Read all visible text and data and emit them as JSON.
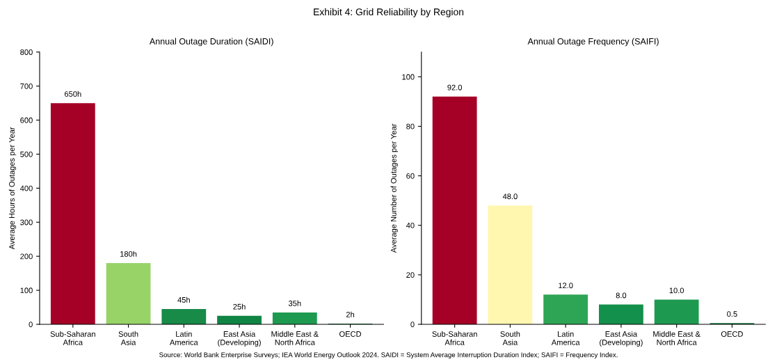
{
  "chart_data": [
    {
      "type": "bar",
      "title": "Annual Outage Duration (SAIDI)",
      "ylabel": "Average Hours of Outages per Year",
      "annotations": [
        "Exhibit 4: Grid Reliability by Region",
        "Source: World Bank Enterprise Surveys; IEA World Energy Outlook 2024. SAIDI = System Average Interruption Duration Index; SAIFI = Frequency Index."
      ],
      "categories": [
        "Sub-Saharan\nAfrica",
        "South\nAsia",
        "Latin\nAmerica",
        "East Asia\n(Developing)",
        "Middle East &\nNorth Africa",
        "OECD"
      ],
      "values": [
        650,
        180,
        45,
        25,
        35,
        2
      ],
      "colors": [
        "#a50026",
        "#98d368",
        "#178b47",
        "#0f8443",
        "#1e9a50",
        "#0a6e39"
      ],
      "value_labels": [
        "650h",
        "180h",
        "45h",
        "25h",
        "35h",
        "2h"
      ],
      "ylim": [
        0,
        800
      ],
      "yticks": [
        0,
        100,
        200,
        300,
        400,
        500,
        600,
        700,
        800
      ],
      "grid": false
    },
    {
      "type": "bar",
      "title": "Annual Outage Frequency (SAIFI)",
      "ylabel": "Average Number of Outages per Year",
      "categories": [
        "Sub-Saharan\nAfrica",
        "South\nAsia",
        "Latin\nAmerica",
        "East Asia\n(Developing)",
        "Middle East &\nNorth Africa",
        "OECD"
      ],
      "values": [
        92.0,
        48.0,
        12.0,
        8.0,
        10.0,
        0.5
      ],
      "colors": [
        "#a50026",
        "#fff7b0",
        "#2ea554",
        "#13904b",
        "#1e9a50",
        "#0a6e39"
      ],
      "value_labels": [
        "92.0",
        "48.0",
        "12.0",
        "8.0",
        "10.0",
        "0.5"
      ],
      "ylim": [
        0,
        110
      ],
      "yticks": [
        0,
        20,
        40,
        60,
        80,
        100
      ],
      "grid": false
    }
  ]
}
